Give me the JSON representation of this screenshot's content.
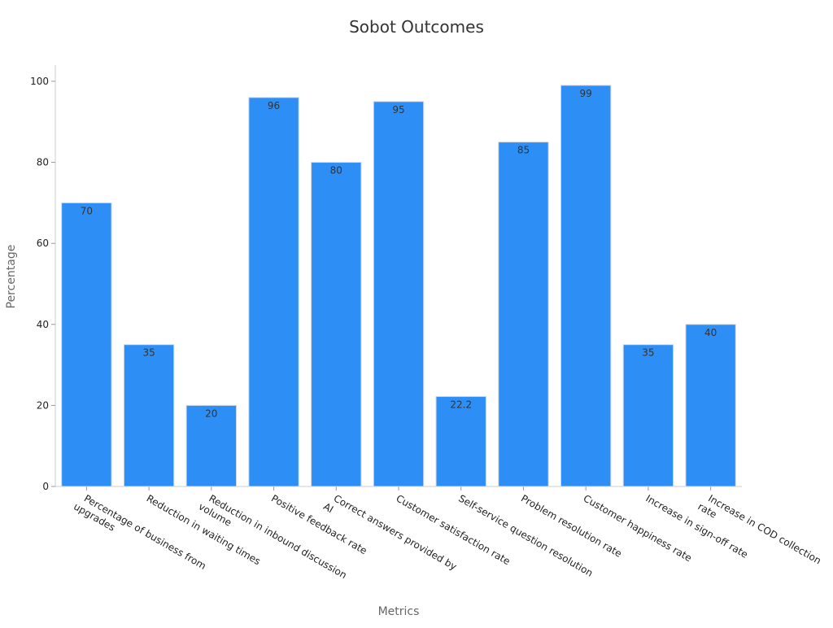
{
  "chart_data": {
    "type": "bar",
    "title": "Sobot Outcomes",
    "xlabel": "Metrics",
    "ylabel": "Percentage",
    "categories": [
      [
        "Percentage of business from",
        "upgrades"
      ],
      [
        "Reduction in waiting times"
      ],
      [
        "Reduction in inbound discussion",
        "volume"
      ],
      [
        "Positive feedback rate"
      ],
      [
        "Correct answers provided by",
        "AI"
      ],
      [
        "Customer satisfaction rate"
      ],
      [
        "Self-service question resolution"
      ],
      [
        "Problem resolution rate"
      ],
      [
        "Customer happiness rate"
      ],
      [
        "Increase in sign-off rate"
      ],
      [
        "Increase in COD collection",
        "rate"
      ]
    ],
    "values": [
      70,
      35,
      20,
      96,
      80,
      95,
      22.2,
      85,
      99,
      35,
      40
    ],
    "data_labels": [
      "70",
      "35",
      "20",
      "96",
      "80",
      "95",
      "22.2",
      "85",
      "99",
      "35",
      "40"
    ],
    "ylim": [
      0,
      104
    ],
    "yticks": [
      0,
      20,
      40,
      60,
      80,
      100
    ],
    "grid": false,
    "legend": "none",
    "bar_color": "#2d8ff5"
  }
}
